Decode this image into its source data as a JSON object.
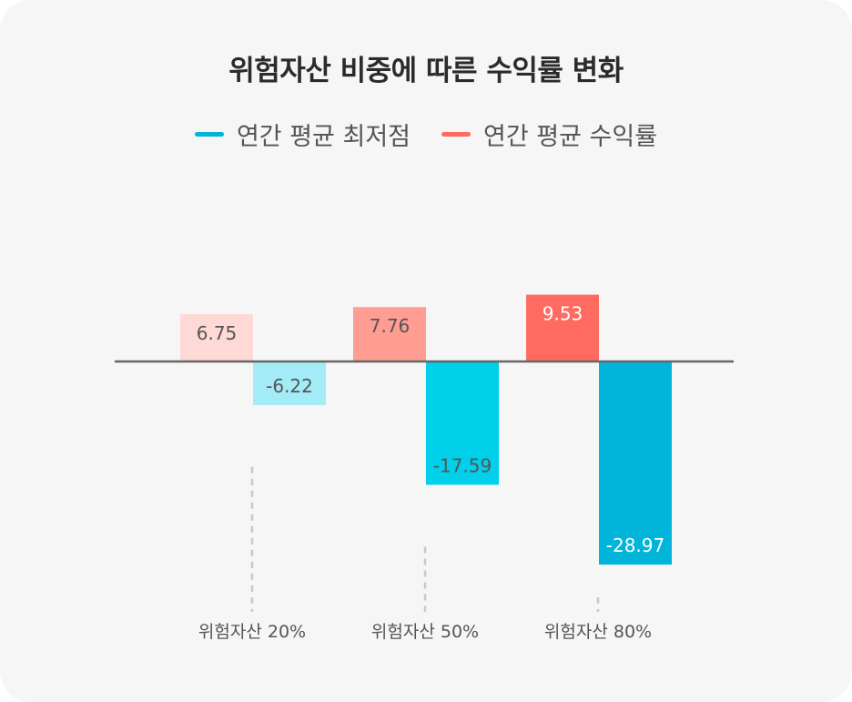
{
  "chart_data": {
    "type": "bar",
    "title": "위험자산 비중에 따른 수익률 변화",
    "categories": [
      "위험자산 20%",
      "위험자산 50%",
      "위험자산 80%"
    ],
    "series": [
      {
        "name": "연간 평균 최저점",
        "color": "#00b4d8",
        "values": [
          -6.22,
          -17.59,
          -28.97
        ],
        "bar_colors": [
          "#a3ecf7",
          "#00d0ea",
          "#00b4da"
        ],
        "label_colors": [
          "#555555",
          "#555555",
          "#ffffff"
        ]
      },
      {
        "name": "연간 평균 수익률",
        "color": "#ff6b5e",
        "values": [
          6.75,
          7.76,
          9.53
        ],
        "bar_colors": [
          "#ffd9d5",
          "#ff9d93",
          "#ff6b60"
        ],
        "label_colors": [
          "#555555",
          "#555555",
          "#ffffff"
        ]
      }
    ],
    "value_labels": {
      "lowest": [
        "-6.22",
        "-17.59",
        "-28.97"
      ],
      "return": [
        "6.75",
        "7.76",
        "9.53"
      ]
    },
    "grid": false,
    "legend_position": "top-center",
    "baseline_color": "#666666",
    "guide_color": "#c8c8c8"
  }
}
